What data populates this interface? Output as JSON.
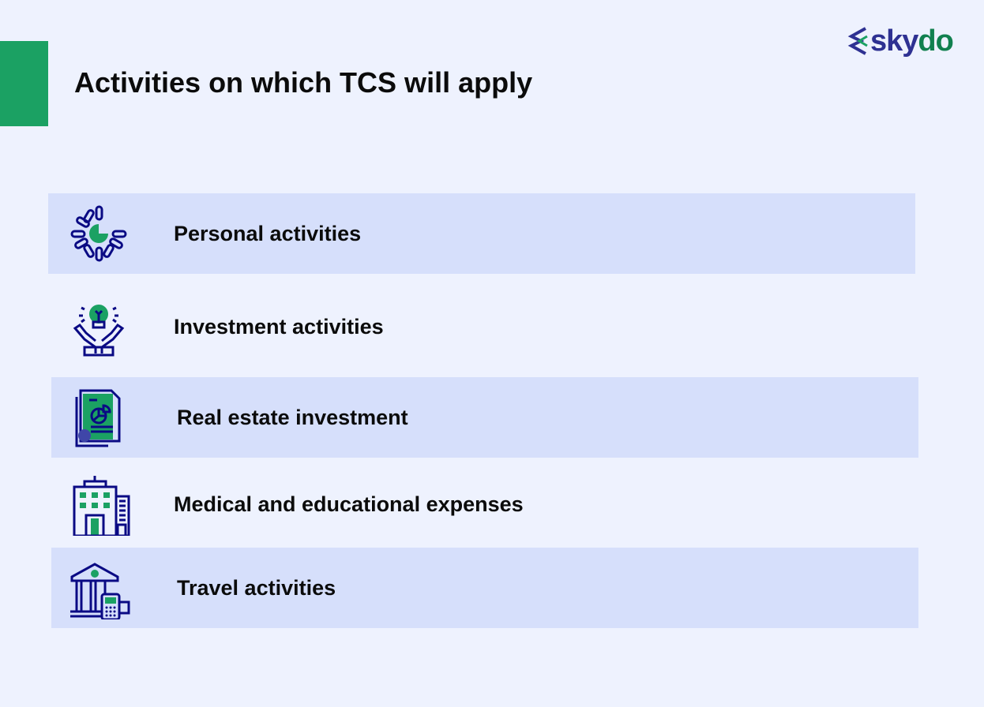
{
  "header": {
    "title": "Activities on which TCS will apply"
  },
  "logo": {
    "text": "skydo",
    "part1": "sky",
    "part2": "do"
  },
  "colors": {
    "accent": "#1ba163",
    "icon_navy": "#0a0a84",
    "band": "#d6dffb",
    "background": "#eef2fe"
  },
  "items": [
    {
      "label": "Personal activities",
      "icon": "loading-pie-icon"
    },
    {
      "label": "Investment activities",
      "icon": "hands-lightbulb-icon"
    },
    {
      "label": "Real estate investment",
      "icon": "document-chart-icon"
    },
    {
      "label": "Medical and educational expenses",
      "icon": "building-icon"
    },
    {
      "label": "Travel activities",
      "icon": "bank-card-terminal-icon"
    }
  ]
}
